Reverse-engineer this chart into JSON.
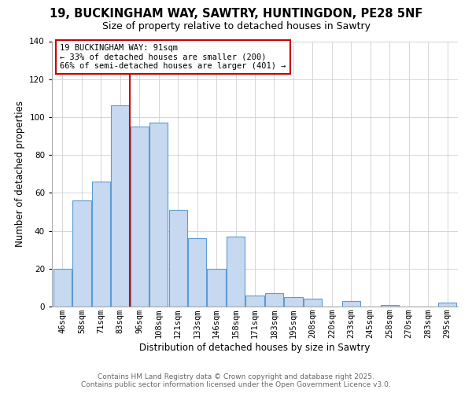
{
  "title": "19, BUCKINGHAM WAY, SAWTRY, HUNTINGDON, PE28 5NF",
  "subtitle": "Size of property relative to detached houses in Sawtry",
  "xlabel": "Distribution of detached houses by size in Sawtry",
  "ylabel": "Number of detached properties",
  "bar_labels": [
    "46sqm",
    "58sqm",
    "71sqm",
    "83sqm",
    "96sqm",
    "108sqm",
    "121sqm",
    "133sqm",
    "146sqm",
    "158sqm",
    "171sqm",
    "183sqm",
    "195sqm",
    "208sqm",
    "220sqm",
    "233sqm",
    "245sqm",
    "258sqm",
    "270sqm",
    "283sqm",
    "295sqm"
  ],
  "bar_values": [
    20,
    56,
    66,
    106,
    95,
    97,
    51,
    36,
    20,
    37,
    6,
    7,
    5,
    4,
    0,
    3,
    0,
    1,
    0,
    0,
    2
  ],
  "bar_color": "#c6d9f0",
  "bar_edge_color": "#5b9bd5",
  "vline_color": "#cc0000",
  "vline_position": 3.5,
  "annotation_text": "19 BUCKINGHAM WAY: 91sqm\n← 33% of detached houses are smaller (200)\n66% of semi-detached houses are larger (401) →",
  "annotation_box_facecolor": "#ffffff",
  "annotation_box_edgecolor": "#cc0000",
  "ylim": [
    0,
    140
  ],
  "yticks": [
    0,
    20,
    40,
    60,
    80,
    100,
    120,
    140
  ],
  "footer_line1": "Contains HM Land Registry data © Crown copyright and database right 2025.",
  "footer_line2": "Contains public sector information licensed under the Open Government Licence v3.0.",
  "background_color": "#ffffff",
  "grid_color": "#d0d0d0",
  "title_fontsize": 10.5,
  "subtitle_fontsize": 9,
  "axis_label_fontsize": 8.5,
  "tick_fontsize": 7.5,
  "annotation_fontsize": 7.5,
  "footer_fontsize": 6.5
}
